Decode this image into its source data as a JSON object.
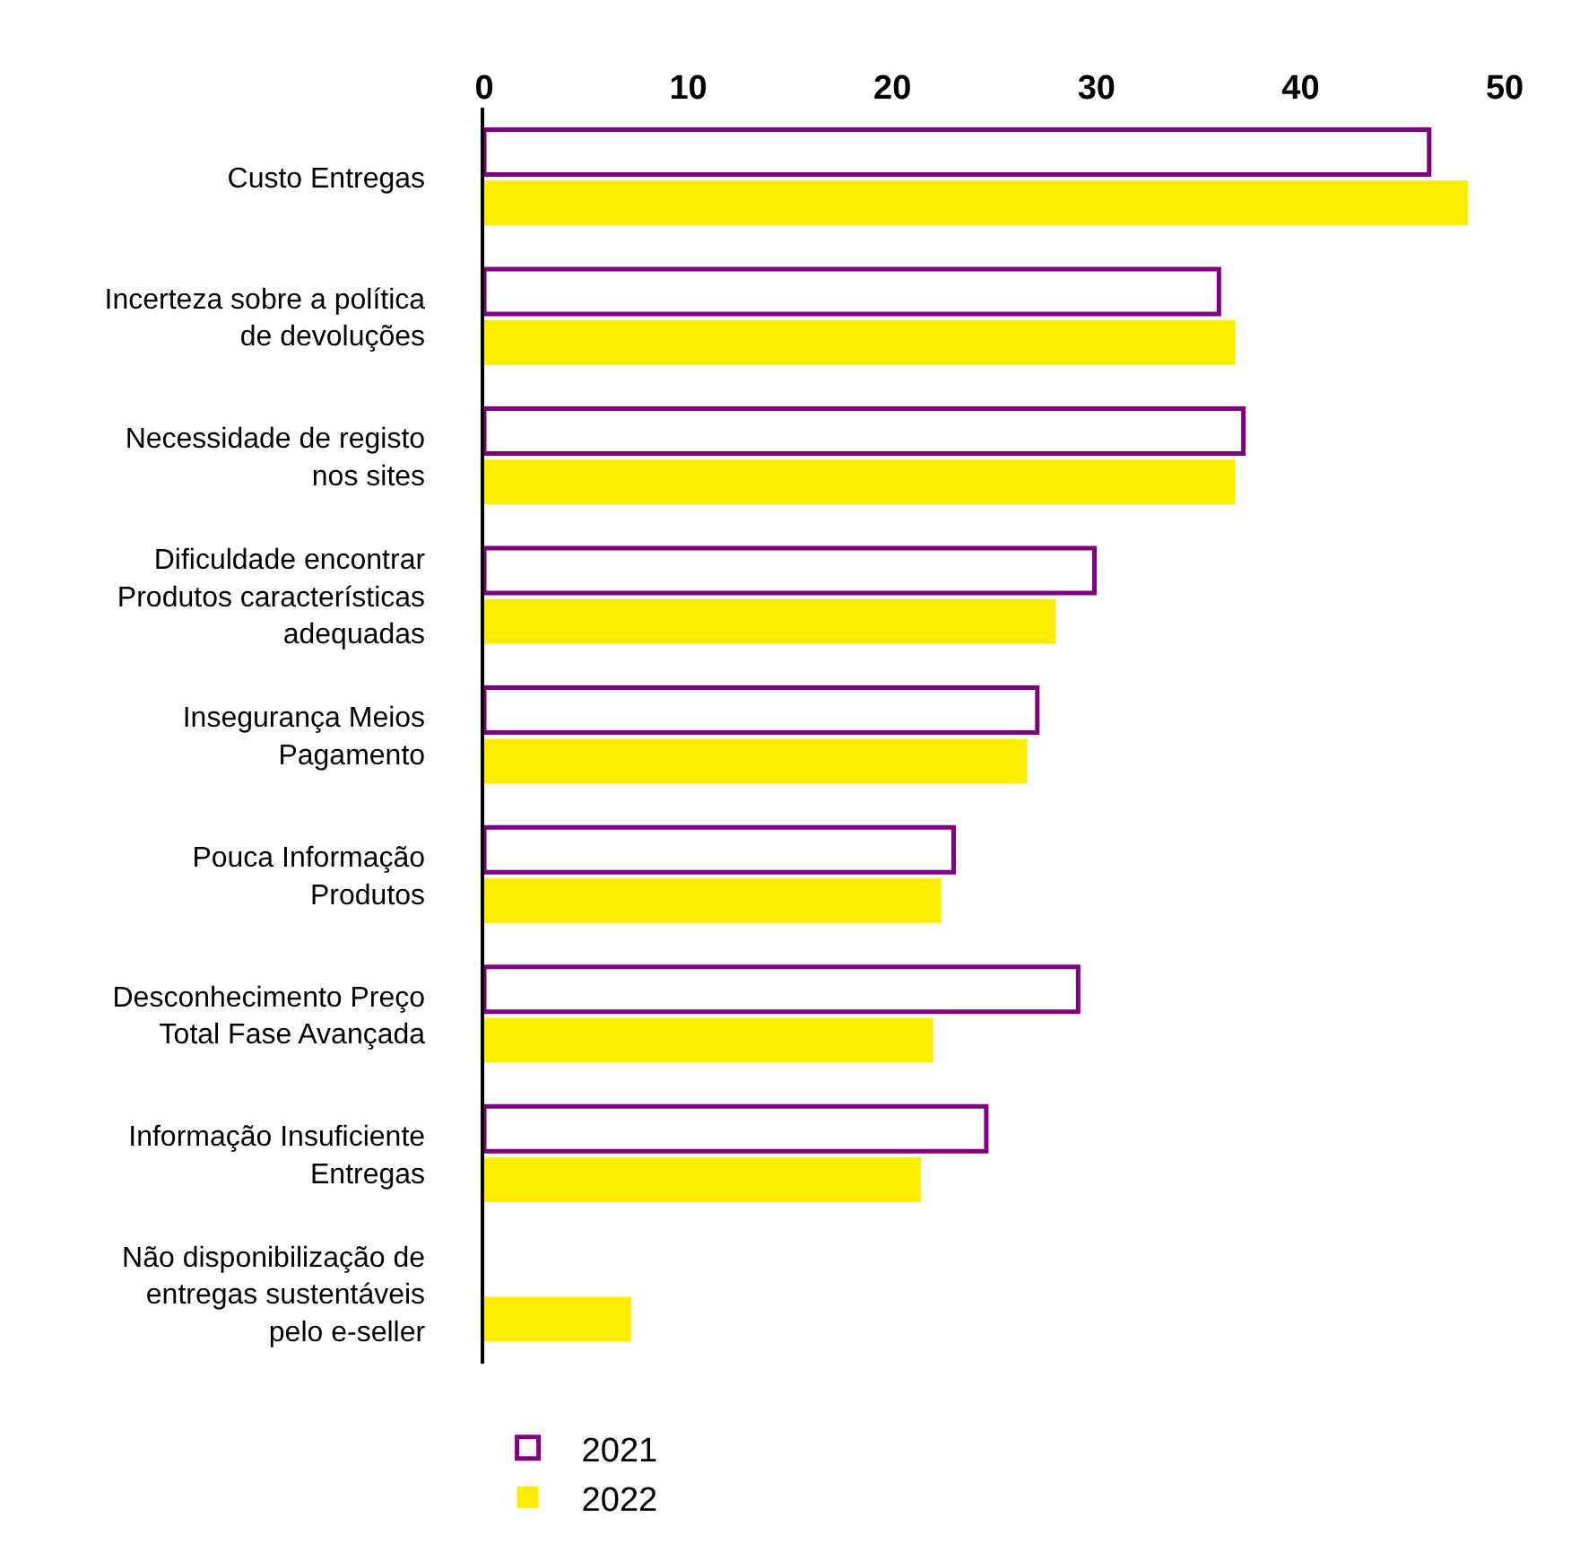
{
  "chart_data": {
    "type": "bar",
    "orientation": "horizontal",
    "categories": [
      "Custo Entregas",
      "Incerteza sobre a política\nde devoluções",
      "Necessidade de registo\nnos sites",
      "Dificuldade encontrar\nProdutos características\nadequadas",
      "Insegurança Meios\nPagamento",
      "Pouca Informação\nProdutos",
      "Desconhecimento Preço\nTotal Fase Avançada",
      "Informação Insuficiente\nEntregas",
      "Não disponibilização de\nentregas sustentáveis\npelo e-seller"
    ],
    "series": [
      {
        "name": "2021",
        "color": "#800080",
        "values": [
          46.3,
          36.0,
          37.2,
          29.9,
          27.1,
          23.0,
          29.1,
          24.6,
          null
        ]
      },
      {
        "name": "2022",
        "color": "#ffed00",
        "values": [
          48.2,
          36.8,
          36.8,
          28.0,
          26.6,
          22.4,
          22.0,
          21.4,
          7.2
        ]
      }
    ],
    "xlim": [
      0,
      50
    ],
    "xticks": [
      0,
      10,
      20,
      30,
      40,
      50
    ],
    "legend": "bottom left"
  }
}
